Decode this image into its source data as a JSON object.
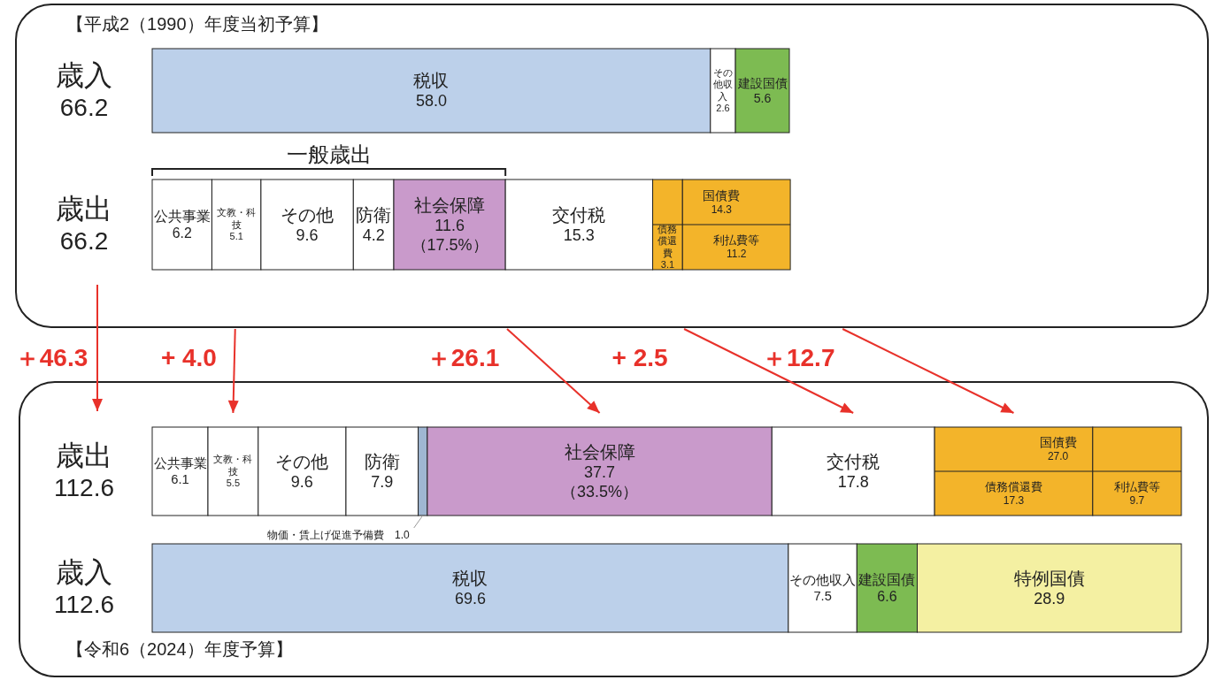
{
  "chart_data": [
    {
      "type": "bar",
      "orientation": "horizontal",
      "stacked": true,
      "title": "【平成2（1990）年度当初予算】",
      "categories": [
        "歳入\n66.2",
        "歳出\n66.2"
      ],
      "xlim": [
        0,
        66.2
      ],
      "tick_labels": false,
      "series": [
        {
          "name": "税収",
          "color": "#bcd0ea",
          "values": [
            58.0,
            null
          ],
          "value_labels": [
            "58.0",
            null
          ]
        },
        {
          "name": "その他収入",
          "color": "#ffffff",
          "values": [
            2.6,
            null
          ],
          "value_labels": [
            "2.6",
            null
          ]
        },
        {
          "name": "建設国債",
          "color": "#7dbb52",
          "values": [
            5.6,
            null
          ],
          "value_labels": [
            "5.6",
            null
          ]
        },
        {
          "name": "公共事業",
          "color": "#ffffff",
          "values": [
            null,
            6.2
          ],
          "value_labels": [
            null,
            "6.2"
          ]
        },
        {
          "name": "文教・科技",
          "color": "#ffffff",
          "values": [
            null,
            5.1
          ],
          "value_labels": [
            null,
            "5.1"
          ]
        },
        {
          "name": "その他",
          "color": "#ffffff",
          "values": [
            null,
            9.6
          ],
          "value_labels": [
            null,
            "9.6"
          ]
        },
        {
          "name": "防衛",
          "color": "#ffffff",
          "values": [
            null,
            4.2
          ],
          "value_labels": [
            null,
            "4.2"
          ]
        },
        {
          "name": "社会保障",
          "color": "#c99acb",
          "values": [
            null,
            11.6
          ],
          "value_labels": [
            null,
            "11.6\n（17.5%）"
          ]
        },
        {
          "name": "交付税",
          "color": "#ffffff",
          "values": [
            null,
            15.3
          ],
          "value_labels": [
            null,
            "15.3"
          ]
        },
        {
          "name": "債務償還費",
          "color": "#f3b42a",
          "values": [
            null,
            3.1
          ],
          "value_labels": [
            null,
            "3.1"
          ]
        },
        {
          "name": "利払費等",
          "color": "#f3b42a",
          "values": [
            null,
            11.2
          ],
          "value_labels": [
            null,
            "11.2"
          ]
        }
      ],
      "annotations": [
        "一般歳出",
        "国債費\n14.3"
      ]
    },
    {
      "type": "bar",
      "orientation": "horizontal",
      "stacked": true,
      "title": "【令和6（2024）年度予算】",
      "categories": [
        "歳出\n112.6",
        "歳入\n112.6"
      ],
      "xlim": [
        0,
        112.6
      ],
      "tick_labels": false,
      "series": [
        {
          "name": "公共事業",
          "color": "#ffffff",
          "values": [
            6.1,
            null
          ],
          "value_labels": [
            "6.1",
            null
          ]
        },
        {
          "name": "文教・科技",
          "color": "#ffffff",
          "values": [
            5.5,
            null
          ],
          "value_labels": [
            "5.5",
            null
          ]
        },
        {
          "name": "その他",
          "color": "#ffffff",
          "values": [
            9.6,
            null
          ],
          "value_labels": [
            "9.6",
            null
          ]
        },
        {
          "name": "防衛",
          "color": "#ffffff",
          "values": [
            7.9,
            null
          ],
          "value_labels": [
            "7.9",
            null
          ]
        },
        {
          "name": "物価・賃上げ促進予備費",
          "color": "#9fb6d2",
          "values": [
            1.0,
            null
          ],
          "value_labels": [
            "1.0",
            null
          ]
        },
        {
          "name": "社会保障",
          "color": "#c99acb",
          "values": [
            37.7,
            null
          ],
          "value_labels": [
            "37.7\n（33.5%）",
            null
          ]
        },
        {
          "name": "交付税",
          "color": "#ffffff",
          "values": [
            17.8,
            null
          ],
          "value_labels": [
            "17.8",
            null
          ]
        },
        {
          "name": "債務償還費",
          "color": "#f3b42a",
          "values": [
            17.3,
            null
          ],
          "value_labels": [
            "17.3",
            null
          ]
        },
        {
          "name": "利払費等",
          "color": "#f3b42a",
          "values": [
            9.7,
            null
          ],
          "value_labels": [
            "9.7",
            null
          ]
        },
        {
          "name": "税収",
          "color": "#bcd0ea",
          "values": [
            null,
            69.6
          ],
          "value_labels": [
            null,
            "69.6"
          ]
        },
        {
          "name": "その他収入",
          "color": "#ffffff",
          "values": [
            null,
            7.5
          ],
          "value_labels": [
            null,
            "7.5"
          ]
        },
        {
          "name": "建設国債",
          "color": "#7dbb52",
          "values": [
            null,
            6.6
          ],
          "value_labels": [
            null,
            "6.6"
          ]
        },
        {
          "name": "特例国債",
          "color": "#f4f0a2",
          "values": [
            null,
            28.9
          ],
          "value_labels": [
            null,
            "28.9"
          ]
        }
      ],
      "annotations": [
        "国債費\n27.0",
        "＋46.3",
        "+ 4.0",
        "＋26.1",
        "+ 2.5",
        "＋12.7"
      ]
    }
  ]
}
